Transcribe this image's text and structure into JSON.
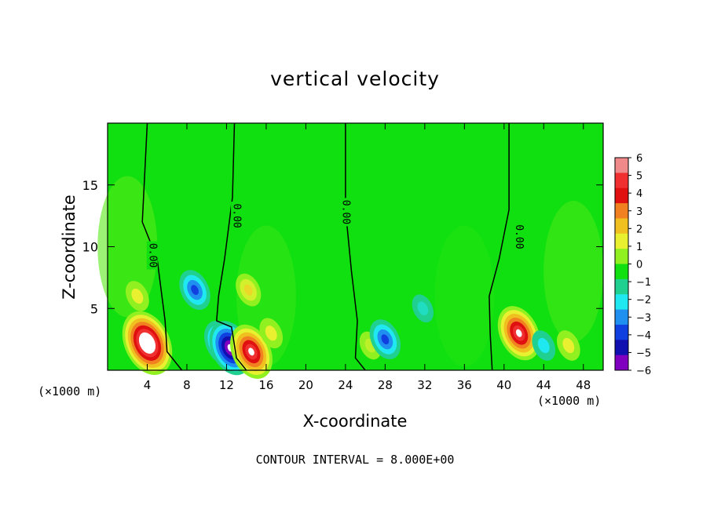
{
  "chart_data": {
    "type": "heatmap",
    "title": "vertical velocity",
    "xlabel": "X-coordinate",
    "ylabel": "Z-coordinate",
    "x_unit": "(×1000 m)",
    "x_range": [
      0,
      50
    ],
    "y_range": [
      0,
      20
    ],
    "x_ticks": [
      4,
      8,
      12,
      16,
      20,
      24,
      28,
      32,
      36,
      40,
      44,
      48
    ],
    "y_ticks": [
      5,
      10,
      15
    ],
    "contour_labels": [
      "0.00",
      "0.00",
      "0.00",
      "0.00"
    ],
    "footer": "CONTOUR INTERVAL = 8.000E+00",
    "colorbar": {
      "levels": [
        6,
        5,
        4,
        3,
        2,
        1,
        0,
        -1,
        -2,
        -3,
        -4,
        -5,
        -6
      ],
      "level_labels": [
        "6",
        "5",
        "4",
        "3",
        "2",
        "1",
        "0",
        "−1",
        "−2",
        "−3",
        "−4",
        "−5",
        "−6"
      ],
      "colors": [
        "#f08a8a",
        "#f03030",
        "#e01010",
        "#f08020",
        "#f0c020",
        "#e8f030",
        "#90f020",
        "#10e010",
        "#20d090",
        "#20e8f0",
        "#2090f0",
        "#1040e0",
        "#1010b0",
        "#8000c0"
      ]
    },
    "features": [
      {
        "x": 4.0,
        "z": 2.2,
        "w": 9
      },
      {
        "x": 3.0,
        "z": 6.0,
        "w": 2
      },
      {
        "x": 8.8,
        "z": 6.5,
        "w": -4
      },
      {
        "x": 11.5,
        "z": 2.2,
        "w": -5
      },
      {
        "x": 12.4,
        "z": 1.8,
        "w": -7
      },
      {
        "x": 14.5,
        "z": 1.5,
        "w": 7
      },
      {
        "x": 14.2,
        "z": 6.5,
        "w": 2.5
      },
      {
        "x": 16.5,
        "z": 3.0,
        "w": 2
      },
      {
        "x": 26.5,
        "z": 2.0,
        "w": 1.5
      },
      {
        "x": 28.0,
        "z": 2.5,
        "w": -4
      },
      {
        "x": 31.8,
        "z": 5.0,
        "w": -1.5
      },
      {
        "x": 41.5,
        "z": 3.0,
        "w": 7
      },
      {
        "x": 44.0,
        "z": 2.0,
        "w": -2
      },
      {
        "x": 46.5,
        "z": 2.0,
        "w": 2
      }
    ]
  }
}
